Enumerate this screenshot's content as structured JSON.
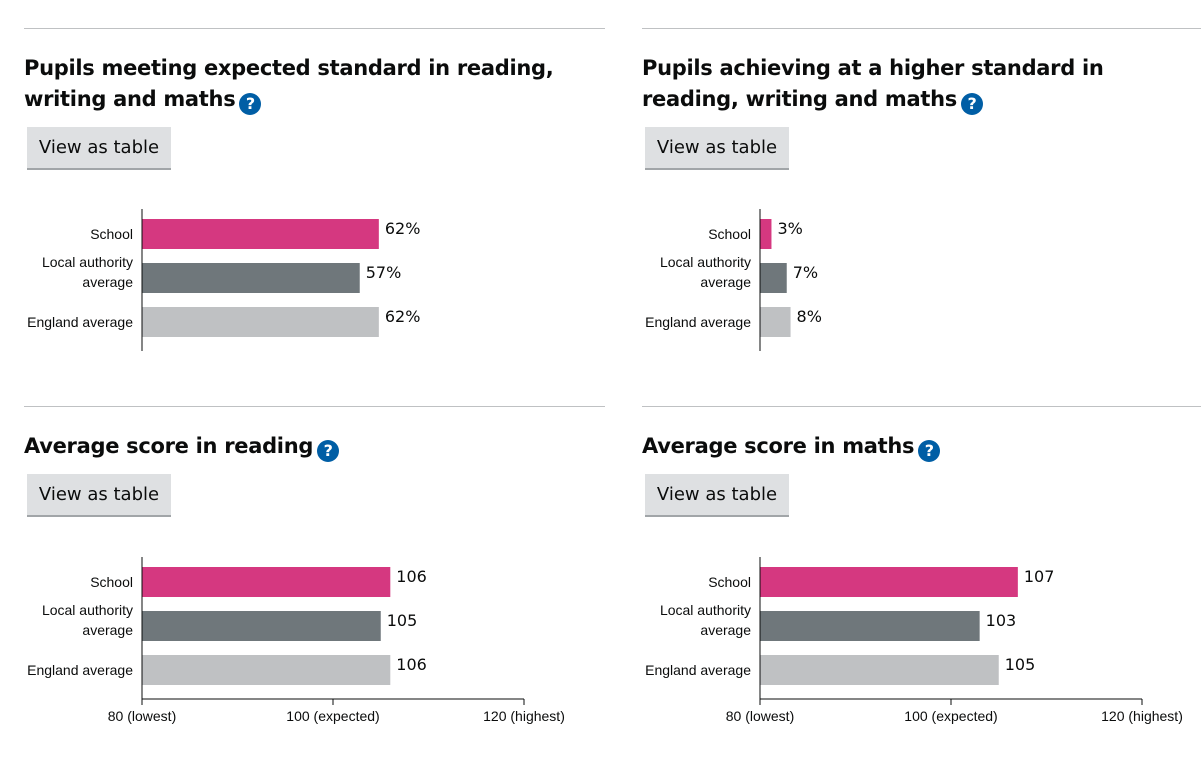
{
  "panels": [
    {
      "title": "Pupils meeting expected standard in reading, writing and maths",
      "help_icon": "question-mark-icon",
      "button_label": "View as table"
    },
    {
      "title": "Pupils achieving at a higher standard in reading, writing and maths",
      "help_icon": "question-mark-icon",
      "button_label": "View as table"
    },
    {
      "title": "Average score in reading",
      "help_icon": "question-mark-icon",
      "button_label": "View as table"
    },
    {
      "title": "Average score in maths",
      "help_icon": "question-mark-icon",
      "button_label": "View as table"
    }
  ],
  "colors": {
    "school": "#d53880",
    "local_authority": "#6f777b",
    "england": "#bfc1c3",
    "help_icon": "#005ea5"
  },
  "chart_data": [
    {
      "type": "bar",
      "orientation": "horizontal",
      "categories": [
        "School",
        "Local authority average",
        "England average"
      ],
      "values": [
        62,
        57,
        62
      ],
      "value_labels": [
        "62%",
        "57%",
        "62%"
      ],
      "xlim": [
        0,
        100
      ],
      "x_ticks": []
    },
    {
      "type": "bar",
      "orientation": "horizontal",
      "categories": [
        "School",
        "Local authority average",
        "England average"
      ],
      "values": [
        3,
        7,
        8
      ],
      "value_labels": [
        "3%",
        "7%",
        "8%"
      ],
      "xlim": [
        0,
        100
      ],
      "x_ticks": []
    },
    {
      "type": "bar",
      "orientation": "horizontal",
      "categories": [
        "School",
        "Local authority average",
        "England average"
      ],
      "values": [
        106,
        105,
        106
      ],
      "value_labels": [
        "106",
        "105",
        "106"
      ],
      "xlim": [
        80,
        120
      ],
      "x_ticks": [
        {
          "value": 80,
          "label": "80 (lowest)"
        },
        {
          "value": 100,
          "label": "100 (expected)"
        },
        {
          "value": 120,
          "label": "120 (highest)"
        }
      ]
    },
    {
      "type": "bar",
      "orientation": "horizontal",
      "categories": [
        "School",
        "Local authority average",
        "England average"
      ],
      "values": [
        107,
        103,
        105
      ],
      "value_labels": [
        "107",
        "103",
        "105"
      ],
      "xlim": [
        80,
        120
      ],
      "x_ticks": [
        {
          "value": 80,
          "label": "80 (lowest)"
        },
        {
          "value": 100,
          "label": "100 (expected)"
        },
        {
          "value": 120,
          "label": "120 (highest)"
        }
      ]
    }
  ]
}
